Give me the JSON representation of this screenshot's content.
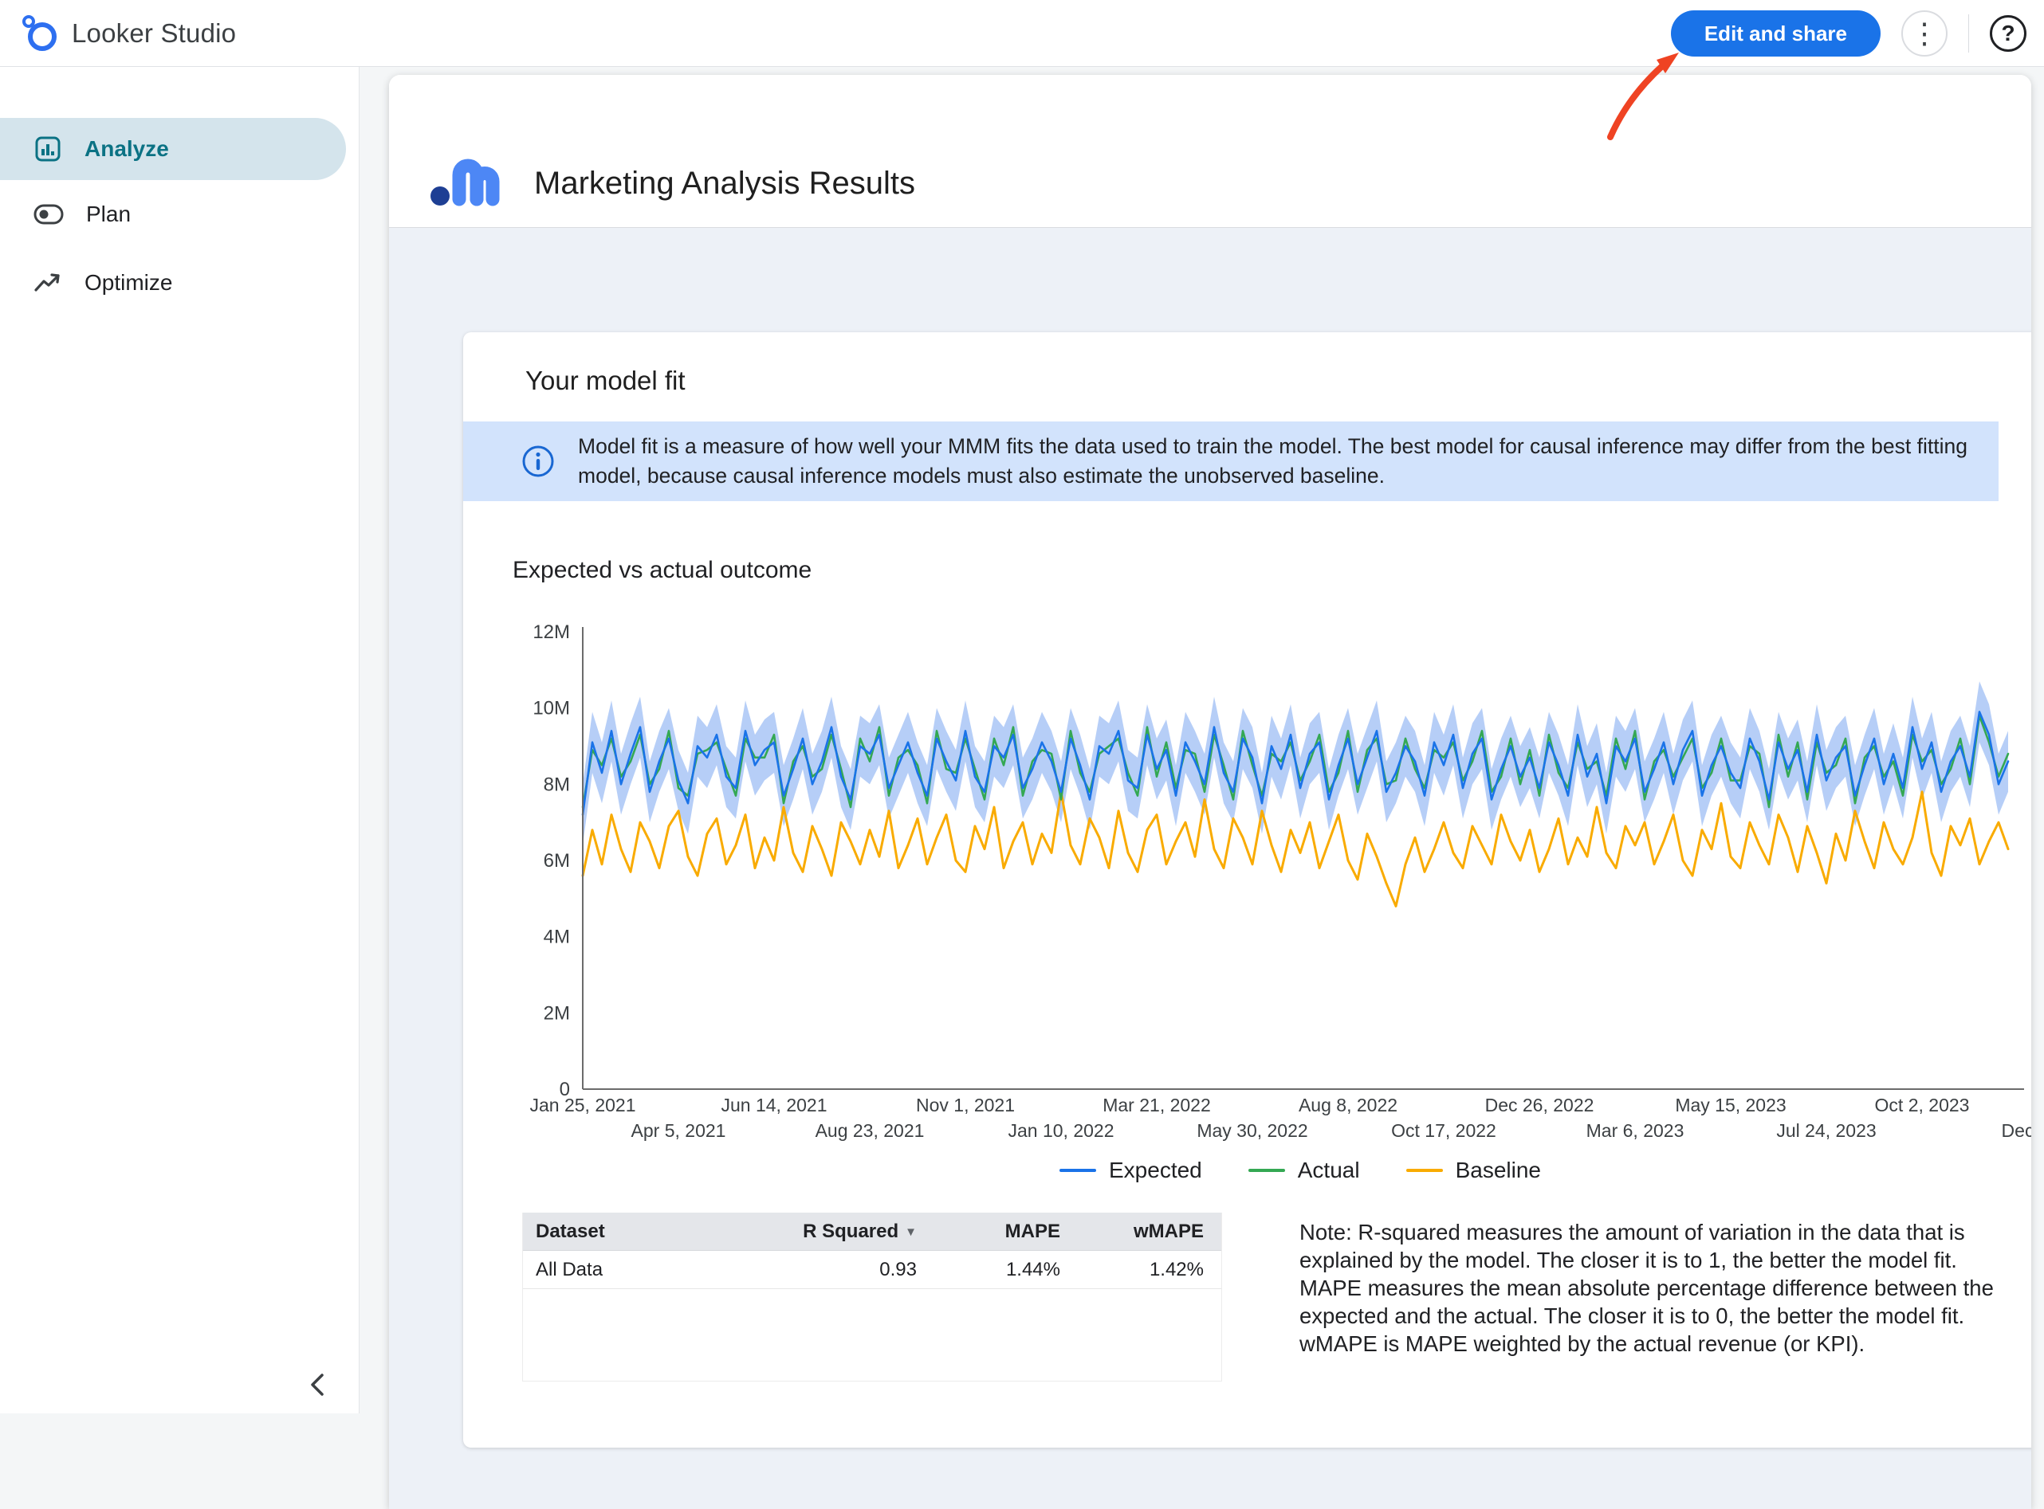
{
  "topbar": {
    "app_title": "Looker Studio",
    "edit_share_button": "Edit and share"
  },
  "icons": {
    "kebab": "⋮",
    "help": "?",
    "sort_desc": "▼"
  },
  "sidebar": {
    "items": [
      {
        "label": "Analyze",
        "selected": true
      },
      {
        "label": "Plan",
        "selected": false
      },
      {
        "label": "Optimize",
        "selected": false
      }
    ]
  },
  "report": {
    "title": "Marketing Analysis Results",
    "section": {
      "title": "Your model fit",
      "info_banner": "Model fit is a measure of how well your MMM fits the data used to train the model. The best model for causal inference may differ from the best fitting model, because causal inference models must also estimate the unobserved baseline.",
      "chart_title": "Expected vs actual outcome",
      "note": "Note: R-squared measures the amount of variation in the data that is explained by the model. The closer it is to 1, the better the model fit. MAPE measures the mean absolute percentage difference between the expected and the actual. The closer it is to 0, the better the model fit. wMAPE is MAPE weighted by the actual revenue (or KPI)."
    }
  },
  "fit_table": {
    "headers": [
      "Dataset",
      "R Squared",
      "MAPE",
      "wMAPE"
    ],
    "sorted_by": "R Squared",
    "rows": [
      {
        "dataset": "All Data",
        "r_squared": "0.93",
        "mape": "1.44%",
        "wmape": "1.42%"
      }
    ]
  },
  "chart_data": {
    "type": "line",
    "title": "Expected vs actual outcome",
    "ylim": [
      0,
      12
    ],
    "unit": "millions",
    "grid": false,
    "legend_position": "bottom",
    "y_tick_labels": [
      "0",
      "2M",
      "4M",
      "6M",
      "8M",
      "10M",
      "12M"
    ],
    "x_tick_labels": [
      "Jan 25, 2021",
      "Apr 5, 2021",
      "Jun 14, 2021",
      "Aug 23, 2021",
      "Nov 1, 2021",
      "Jan 10, 2022",
      "Mar 21, 2022",
      "May 30, 2022",
      "Aug 8, 2022",
      "Oct 17, 2022",
      "Dec 26, 2022",
      "Mar 6, 2023",
      "May 15, 2023",
      "Jul 24, 2023",
      "Oct 2, 2023",
      "Dec"
    ],
    "ci_band_half_width": 0.8,
    "band_color": "#a4c2f5",
    "series": [
      {
        "name": "Expected",
        "color": "#1a73e8",
        "values": [
          7.2,
          9.1,
          8.3,
          9.4,
          8.0,
          8.8,
          9.5,
          7.8,
          8.6,
          9.2,
          8.1,
          7.5,
          9.0,
          8.7,
          9.3,
          8.2,
          7.9,
          9.4,
          8.5,
          8.9,
          9.1,
          7.7,
          8.4,
          9.2,
          8.0,
          8.6,
          9.5,
          8.2,
          7.6,
          9.0,
          8.8,
          9.3,
          7.9,
          8.5,
          9.1,
          8.3,
          7.7,
          9.2,
          8.6,
          8.1,
          9.4,
          8.2,
          7.8,
          9.0,
          8.7,
          9.3,
          7.9,
          8.4,
          9.1,
          8.6,
          7.8,
          9.2,
          8.5,
          7.6,
          9.0,
          8.8,
          9.4,
          8.1,
          7.9,
          9.3,
          8.4,
          8.9,
          7.7,
          9.1,
          8.6,
          8.0,
          9.5,
          8.3,
          7.8,
          9.2,
          8.7,
          7.5,
          9.0,
          8.4,
          9.3,
          7.9,
          8.8,
          9.1,
          7.6,
          8.5,
          9.2,
          8.0,
          8.7,
          9.4,
          7.8,
          8.3,
          9.0,
          8.6,
          7.7,
          9.1,
          8.5,
          9.3,
          7.9,
          8.8,
          9.2,
          7.6,
          8.4,
          9.0,
          8.2,
          8.7,
          7.9,
          9.1,
          8.5,
          7.7,
          9.3,
          8.2,
          8.8,
          7.5,
          9.0,
          8.6,
          9.2,
          7.8,
          8.4,
          9.1,
          8.0,
          8.9,
          9.4,
          7.7,
          8.5,
          9.0,
          8.3,
          7.9,
          9.2,
          8.6,
          7.6,
          9.1,
          8.4,
          8.9,
          7.8,
          9.3,
          8.1,
          8.7,
          9.0,
          7.7,
          8.5,
          9.2,
          8.0,
          8.8,
          7.9,
          9.5,
          8.4,
          9.1,
          7.8,
          8.6,
          9.0,
          8.2,
          9.9,
          9.3,
          8.0,
          8.6
        ]
      },
      {
        "name": "Actual",
        "color": "#34a853",
        "values": [
          7.4,
          8.9,
          8.5,
          9.2,
          8.2,
          8.6,
          9.3,
          8.0,
          8.4,
          9.4,
          7.9,
          7.7,
          8.8,
          8.9,
          9.1,
          8.4,
          7.7,
          9.2,
          8.7,
          8.7,
          9.3,
          7.5,
          8.6,
          9.0,
          8.2,
          8.4,
          9.3,
          8.4,
          7.4,
          9.2,
          8.6,
          9.5,
          7.7,
          8.7,
          8.9,
          8.5,
          7.5,
          9.4,
          8.4,
          8.3,
          9.2,
          8.4,
          7.6,
          9.2,
          8.5,
          9.5,
          7.7,
          8.6,
          8.9,
          8.8,
          7.6,
          9.4,
          8.3,
          7.8,
          8.8,
          9.0,
          9.2,
          8.3,
          7.7,
          9.5,
          8.2,
          9.1,
          7.9,
          8.9,
          8.8,
          7.8,
          9.3,
          8.5,
          7.6,
          9.4,
          8.5,
          7.7,
          8.8,
          8.6,
          9.1,
          8.1,
          8.6,
          9.3,
          7.8,
          8.3,
          9.4,
          7.8,
          8.9,
          9.2,
          8.0,
          8.1,
          9.2,
          8.4,
          7.9,
          8.9,
          8.7,
          9.1,
          8.1,
          8.6,
          9.4,
          7.8,
          8.2,
          9.2,
          8.0,
          8.9,
          7.7,
          9.3,
          8.3,
          7.9,
          9.1,
          8.4,
          8.6,
          7.7,
          9.2,
          8.4,
          9.4,
          7.6,
          8.6,
          8.9,
          8.2,
          8.7,
          9.2,
          7.9,
          8.3,
          9.2,
          8.1,
          8.1,
          9.0,
          8.8,
          7.4,
          9.3,
          8.2,
          9.1,
          7.6,
          9.1,
          8.3,
          8.5,
          9.2,
          7.5,
          8.7,
          9.0,
          8.2,
          8.6,
          7.7,
          9.3,
          8.6,
          8.9,
          8.0,
          8.4,
          9.2,
          8.0,
          9.8,
          9.1,
          8.2,
          8.8
        ]
      },
      {
        "name": "Baseline",
        "color": "#f9ab00",
        "values": [
          5.6,
          6.8,
          5.9,
          7.2,
          6.3,
          5.7,
          7.0,
          6.5,
          5.8,
          6.9,
          7.3,
          6.1,
          5.6,
          6.7,
          7.1,
          5.9,
          6.4,
          7.2,
          5.8,
          6.6,
          6.0,
          7.4,
          6.2,
          5.7,
          6.9,
          6.3,
          5.6,
          7.0,
          6.5,
          5.9,
          6.8,
          6.1,
          7.3,
          5.8,
          6.4,
          7.1,
          5.9,
          6.6,
          7.2,
          6.0,
          5.7,
          6.9,
          6.3,
          7.4,
          5.8,
          6.5,
          7.0,
          5.9,
          6.7,
          6.2,
          7.8,
          6.4,
          5.9,
          7.1,
          6.6,
          5.8,
          7.3,
          6.2,
          5.7,
          6.8,
          7.2,
          5.9,
          6.5,
          7.0,
          6.1,
          7.6,
          6.3,
          5.8,
          7.1,
          6.6,
          5.9,
          7.3,
          6.4,
          5.7,
          6.8,
          6.2,
          7.0,
          5.8,
          6.5,
          7.2,
          6.0,
          5.5,
          6.7,
          6.1,
          5.4,
          4.8,
          5.9,
          6.6,
          5.7,
          6.3,
          7.0,
          6.2,
          5.8,
          6.9,
          6.4,
          5.9,
          7.2,
          6.5,
          6.0,
          6.8,
          5.7,
          6.3,
          7.1,
          5.9,
          6.6,
          6.1,
          7.4,
          6.2,
          5.8,
          6.9,
          6.4,
          7.0,
          5.9,
          6.5,
          7.2,
          6.0,
          5.6,
          6.8,
          6.3,
          7.5,
          6.1,
          5.8,
          7.0,
          6.4,
          5.9,
          7.2,
          6.6,
          5.7,
          6.9,
          6.2,
          5.4,
          6.7,
          6.0,
          7.3,
          6.5,
          5.8,
          7.0,
          6.3,
          5.9,
          6.6,
          7.8,
          6.2,
          5.6,
          6.9,
          6.4,
          7.1,
          5.9,
          6.5,
          7.0,
          6.3
        ]
      }
    ]
  }
}
